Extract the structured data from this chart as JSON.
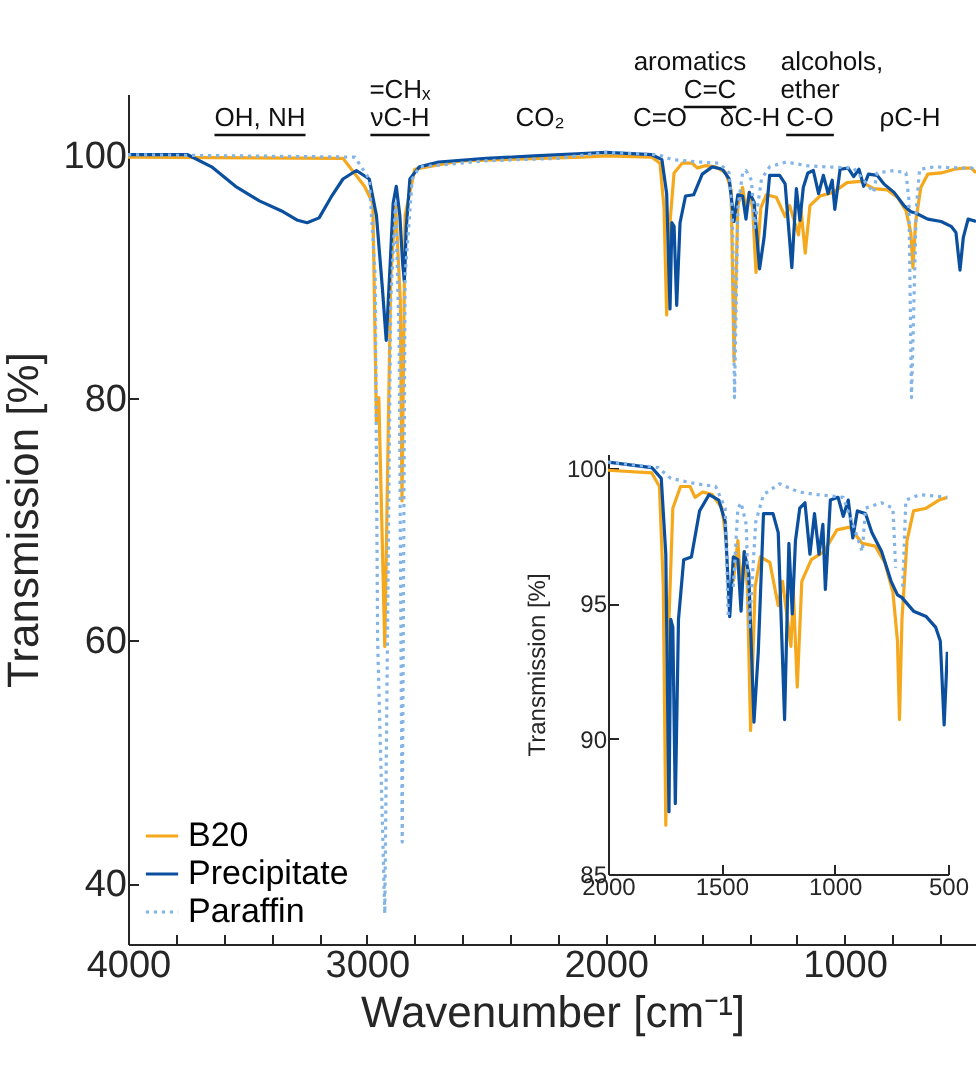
{
  "chart_data": [
    {
      "type": "line",
      "xlabel": "Wavenumber [cm⁻¹]",
      "ylabel": "Transmission [%]",
      "xlim": [
        4000,
        450
      ],
      "ylim": [
        35,
        105
      ],
      "xticks": [
        4000,
        {
          "value": 3800,
          "label": null
        },
        {
          "value": 3600,
          "label": null
        },
        {
          "value": 3400,
          "label": null
        },
        {
          "value": 3200,
          "label": null
        },
        3000,
        {
          "value": 2800,
          "label": null
        },
        {
          "value": 2600,
          "label": null
        },
        {
          "value": 2400,
          "label": null
        },
        {
          "value": 2200,
          "label": null
        },
        2000,
        {
          "value": 1800,
          "label": null
        },
        {
          "value": 1600,
          "label": null
        },
        {
          "value": 1400,
          "label": null
        },
        {
          "value": 1200,
          "label": null
        },
        1000,
        {
          "value": 800,
          "label": null
        },
        {
          "value": 600,
          "label": null
        }
      ],
      "yticks": [
        40,
        60,
        80,
        100
      ],
      "legend": "bottom left",
      "annotations": [
        "OH, NH",
        "=CHₓ",
        "νC-H",
        "CO₂",
        "C=O",
        "aromatics",
        "C=C",
        "δC-H",
        "alcohols,",
        "ether",
        "C-O",
        "ρC-H"
      ],
      "series": [
        {
          "name": "B20",
          "color": "#f5a81c",
          "line_style": "solid",
          "x": [
            4000,
            3100,
            3010,
            2975,
            2960,
            2950,
            2925,
            2900,
            2880,
            2860,
            2853,
            2840,
            2800,
            2600,
            2100,
            2000,
            1807,
            1773,
            1756,
            1745,
            1731,
            1714,
            1680,
            1638,
            1616,
            1582,
            1540,
            1497,
            1475,
            1463,
            1447,
            1427,
            1413,
            1399,
            1385,
            1371,
            1351,
            1328,
            1286,
            1249,
            1230,
            1193,
            1182,
            1165,
            1145,
            1103,
            1047,
            990,
            934,
            878,
            821,
            779,
            743,
            723,
            714,
            703,
            681,
            652,
            596,
            540,
            503,
            469,
            450
          ],
          "values": [
            99.8,
            99.7,
            97.4,
            96,
            78,
            80,
            59.5,
            90,
            96,
            88,
            71.5,
            95,
            98.8,
            99.5,
            99.8,
            99.9,
            99.8,
            99.3,
            95.6,
            86.8,
            94.4,
            98.5,
            99.3,
            99.3,
            98.9,
            99.1,
            99,
            98.5,
            97.1,
            83,
            95.8,
            97.3,
            95.4,
            96.9,
            95.6,
            90.3,
            95.6,
            96.7,
            96.5,
            94.9,
            95.8,
            93.4,
            95.4,
            91.9,
            95.8,
            96.6,
            96.9,
            97.7,
            97.8,
            97.2,
            97.1,
            96.5,
            95.4,
            93.6,
            90.7,
            94.4,
            97.3,
            98.4,
            98.5,
            98.8,
            98.9,
            98.9,
            98.5
          ]
        },
        {
          "name": "Precipitate",
          "color": "#0b4f9f",
          "line_style": "solid",
          "x": [
            4000,
            3750,
            3650,
            3550,
            3450,
            3350,
            3290,
            3250,
            3200,
            3150,
            3100,
            3044,
            2990,
            2960,
            2935,
            2919,
            2905,
            2890,
            2877,
            2862,
            2850,
            2843,
            2835,
            2820,
            2780,
            2700,
            2500,
            2300,
            2100,
            2000,
            1807,
            1765,
            1745,
            1731,
            1723,
            1714,
            1703,
            1689,
            1666,
            1632,
            1596,
            1554,
            1511,
            1483,
            1463,
            1447,
            1427,
            1413,
            1399,
            1379,
            1356,
            1337,
            1314,
            1272,
            1249,
            1221,
            1202,
            1187,
            1173,
            1154,
            1131,
            1109,
            1089,
            1069,
            1052,
            1041,
            1019,
            985,
            962,
            940,
            920,
            900,
            864,
            836,
            793,
            751,
            723,
            703,
            652,
            596,
            554,
            534,
            517,
            503,
            483,
            450
          ],
          "values": [
            100,
            100,
            99,
            97.4,
            96.2,
            95.3,
            94.6,
            94.4,
            94.8,
            96.5,
            98,
            98.7,
            98,
            95,
            89,
            84.7,
            90,
            96,
            97.4,
            95,
            91,
            89.6,
            94,
            98,
            99,
            99.4,
            99.7,
            99.9,
            100.1,
            100.2,
            100,
            99.6,
            96.8,
            87.3,
            94.4,
            94.1,
            87.6,
            94.4,
            96.6,
            96.7,
            98.4,
            99,
            98.8,
            98,
            94.5,
            96.7,
            96.6,
            94.7,
            96.9,
            96.1,
            90.6,
            93.2,
            98.3,
            98.3,
            97.6,
            90.7,
            97.2,
            94.6,
            97.3,
            98.5,
            98.7,
            96.8,
            98.3,
            96.8,
            97.9,
            95.5,
            98.8,
            98.9,
            98.2,
            98.8,
            97.4,
            98.4,
            98.3,
            97.6,
            96.9,
            95.8,
            95.3,
            95.2,
            94.7,
            94.5,
            94.1,
            93.6,
            90.5,
            93.2,
            94.7,
            94.5
          ]
        },
        {
          "name": "Paraffin",
          "color": "#82b4e8",
          "line_style": "dotted",
          "x": [
            4000,
            3050,
            2990,
            2965,
            2955,
            2925,
            2900,
            2880,
            2865,
            2852,
            2840,
            2810,
            2780,
            2500,
            2200,
            2000,
            1779,
            1723,
            1610,
            1525,
            1483,
            1469,
            1461,
            1447,
            1427,
            1413,
            1390,
            1377,
            1348,
            1314,
            1244,
            1159,
            1075,
            962,
            878,
            864,
            793,
            743,
            731,
            720,
            700,
            686,
            624,
            503,
            469,
            450
          ],
          "values": [
            100,
            99.8,
            98,
            90,
            60,
            37.5,
            88,
            96,
            85,
            43.4,
            90,
            98,
            99,
            99.5,
            99.7,
            100.2,
            100,
            99.6,
            99.4,
            99.3,
            98.5,
            94.4,
            80,
            95.6,
            98.5,
            98.7,
            97.9,
            94,
            98,
            99,
            99.4,
            99.1,
            99,
            98.9,
            96.9,
            98.5,
            98.7,
            98.5,
            96.3,
            80,
            95.6,
            98.8,
            99,
            98.9,
            98.9,
            98.8
          ]
        }
      ]
    },
    {
      "type": "line",
      "ylabel": "Transmission [%]",
      "xlim": [
        2000,
        500
      ],
      "ylim": [
        85,
        100.5
      ],
      "xticks": [
        2000,
        1500,
        1000,
        500
      ],
      "yticks": [
        85,
        90,
        95,
        100
      ],
      "series": [
        {
          "color": "#f5a81c",
          "line_style": "solid",
          "x": [
            2000,
            1807,
            1773,
            1756,
            1745,
            1731,
            1714,
            1680,
            1638,
            1616,
            1582,
            1540,
            1497,
            1475,
            1463,
            1447,
            1427,
            1413,
            1399,
            1385,
            1371,
            1351,
            1328,
            1286,
            1249,
            1230,
            1193,
            1182,
            1165,
            1145,
            1103,
            1047,
            990,
            934,
            878,
            821,
            779,
            743,
            723,
            714,
            703,
            681,
            652,
            596,
            540,
            503
          ],
          "values": [
            99.9,
            99.8,
            99.3,
            95.6,
            86.8,
            94.4,
            98.5,
            99.3,
            99.3,
            98.9,
            99.1,
            99,
            98.5,
            97.1,
            null,
            95.8,
            97.3,
            95.4,
            96.9,
            95.6,
            90.3,
            95.6,
            96.7,
            96.5,
            94.9,
            95.8,
            93.4,
            95.4,
            91.9,
            95.8,
            96.6,
            96.9,
            97.7,
            97.8,
            97.2,
            97.1,
            96.5,
            95.4,
            93.6,
            90.7,
            94.4,
            97.3,
            98.4,
            98.5,
            98.8,
            98.9
          ]
        },
        {
          "color": "#0b4f9f",
          "line_style": "solid",
          "x": [
            2000,
            1807,
            1765,
            1745,
            1731,
            1723,
            1714,
            1703,
            1689,
            1666,
            1632,
            1596,
            1554,
            1511,
            1483,
            1463,
            1447,
            1427,
            1413,
            1399,
            1379,
            1356,
            1337,
            1314,
            1272,
            1249,
            1221,
            1202,
            1187,
            1173,
            1154,
            1131,
            1109,
            1089,
            1069,
            1052,
            1041,
            1019,
            985,
            962,
            940,
            920,
            900,
            864,
            836,
            793,
            751,
            723,
            703,
            652,
            596,
            554,
            534,
            517,
            503
          ],
          "values": [
            100.2,
            100,
            99.6,
            96.8,
            87.3,
            94.4,
            94.1,
            87.6,
            94.4,
            96.6,
            96.7,
            98.4,
            99,
            98.8,
            98,
            94.5,
            96.7,
            96.6,
            94.7,
            96.9,
            96.1,
            90.6,
            93.2,
            98.3,
            98.3,
            97.6,
            90.7,
            97.2,
            94.6,
            97.3,
            98.5,
            98.7,
            96.8,
            98.3,
            96.8,
            97.9,
            95.5,
            98.8,
            98.9,
            98.2,
            98.8,
            97.4,
            98.4,
            98.3,
            97.6,
            96.9,
            95.8,
            95.3,
            95.2,
            94.7,
            94.5,
            94.1,
            93.6,
            90.5,
            93.2
          ]
        },
        {
          "color": "#82b4e8",
          "line_style": "dotted",
          "x": [
            2000,
            1779,
            1723,
            1610,
            1525,
            1483,
            1469,
            1461,
            1447,
            1427,
            1413,
            1390,
            1377,
            1348,
            1314,
            1244,
            1159,
            1075,
            962,
            878,
            864,
            793,
            743,
            731,
            720,
            700,
            686,
            624,
            503
          ],
          "values": [
            100.2,
            100,
            99.6,
            99.4,
            99.3,
            98.5,
            94.4,
            null,
            95.6,
            98.5,
            98.7,
            97.9,
            94,
            98,
            99,
            99.4,
            99.1,
            99,
            98.9,
            96.9,
            98.5,
            98.7,
            98.5,
            96.3,
            null,
            95.6,
            98.8,
            99,
            98.9
          ]
        }
      ]
    }
  ]
}
